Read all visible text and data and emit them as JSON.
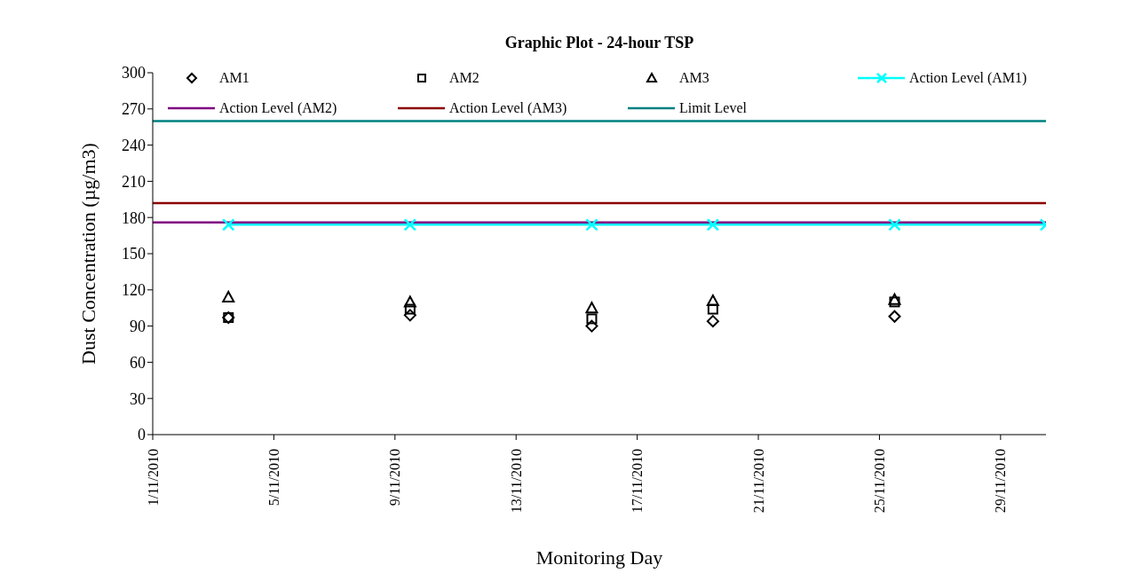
{
  "chart_data": {
    "type": "scatter",
    "title": "Graphic Plot - 24-hour TSP",
    "xlabel": "Monitoring Day",
    "ylabel": "Dust Concentration (µg/m3)",
    "x": [
      "2010-11-03T12:00",
      "2010-11-09T12:00",
      "2010-11-15T12:00",
      "2010-11-19T12:00",
      "2010-11-25T12:00"
    ],
    "series": [
      {
        "name": "AM1",
        "color": "#000000",
        "marker": "diamond",
        "values": [
          97,
          99,
          90,
          94,
          98
        ]
      },
      {
        "name": "AM2",
        "color": "#000000",
        "marker": "square",
        "values": [
          97,
          104,
          96,
          104,
          110
        ]
      },
      {
        "name": "AM3",
        "color": "#000000",
        "marker": "triangle",
        "values": [
          114,
          110,
          105,
          111,
          112
        ]
      },
      {
        "name": "Action Level (AM1)",
        "type": "line",
        "color": "#00ffff",
        "marker": "cross",
        "x": [
          "2010-11-03T12:00",
          "2010-11-09T12:00",
          "2010-11-15T12:00",
          "2010-11-19T12:00",
          "2010-11-25T12:00",
          "2010-11-30T12:00"
        ],
        "values": [
          174,
          174,
          174,
          174,
          174,
          174
        ]
      },
      {
        "name": "Action Level (AM2)",
        "type": "line",
        "color": "#800080",
        "marker": "none",
        "x": [
          "2010-11-01",
          "2010-11-30T12:00"
        ],
        "values": [
          176,
          176
        ]
      },
      {
        "name": "Action Level (AM3)",
        "type": "line",
        "color": "#8b0000",
        "marker": "none",
        "x": [
          "2010-11-01",
          "2010-11-30T12:00"
        ],
        "values": [
          192,
          192
        ]
      },
      {
        "name": "Limit Level",
        "type": "line",
        "color": "#008080",
        "marker": "none",
        "x": [
          "2010-11-01",
          "2010-11-30T12:00"
        ],
        "values": [
          260,
          260
        ]
      }
    ],
    "xlim": [
      "2010-11-01",
      "2010-11-30T12:00"
    ],
    "xticks": [
      {
        "value": "2010-11-01",
        "label": "1/11/2010"
      },
      {
        "value": "2010-11-05",
        "label": "5/11/2010"
      },
      {
        "value": "2010-11-09",
        "label": "9/11/2010"
      },
      {
        "value": "2010-11-13",
        "label": "13/11/2010"
      },
      {
        "value": "2010-11-17",
        "label": "17/11/2010"
      },
      {
        "value": "2010-11-21",
        "label": "21/11/2010"
      },
      {
        "value": "2010-11-25",
        "label": "25/11/2010"
      },
      {
        "value": "2010-11-29",
        "label": "29/11/2010"
      }
    ],
    "ylim": [
      0,
      300
    ],
    "yticks": [
      0,
      30,
      60,
      90,
      120,
      150,
      180,
      210,
      240,
      270,
      300
    ],
    "legend": "top"
  }
}
